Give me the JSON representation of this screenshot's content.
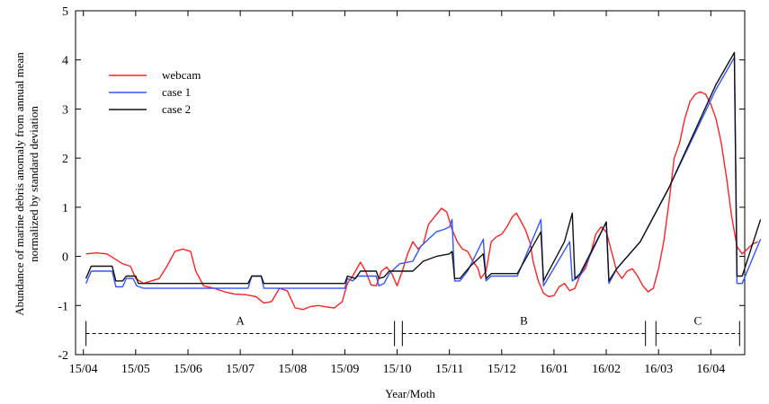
{
  "chart_data": {
    "type": "line",
    "title": "",
    "xlabel": "Year/Moth",
    "ylabel_lines": [
      "Abundance of marine debris anomaly from annual mean",
      "normalized by standard deviation"
    ],
    "x_unit": "month index from 15/04",
    "xlim": [
      0,
      12.35
    ],
    "ylim": [
      -2,
      5
    ],
    "xticks": [
      {
        "x": 0,
        "label": "15/04"
      },
      {
        "x": 1,
        "label": "15/05"
      },
      {
        "x": 2,
        "label": "15/06"
      },
      {
        "x": 3,
        "label": "15/07"
      },
      {
        "x": 4,
        "label": "15/08"
      },
      {
        "x": 5,
        "label": "15/09"
      },
      {
        "x": 6,
        "label": "15/10"
      },
      {
        "x": 7,
        "label": "15/11"
      },
      {
        "x": 8,
        "label": "15/12"
      },
      {
        "x": 9,
        "label": "16/01"
      },
      {
        "x": 10,
        "label": "16/02"
      },
      {
        "x": 11,
        "label": "16/03"
      },
      {
        "x": 12,
        "label": "16/04"
      }
    ],
    "yticks": [
      {
        "y": -2,
        "label": "-2"
      },
      {
        "y": -1,
        "label": "-1"
      },
      {
        "y": 0,
        "label": "0"
      },
      {
        "y": 1,
        "label": "1"
      },
      {
        "y": 2,
        "label": "2"
      },
      {
        "y": 3,
        "label": "3"
      },
      {
        "y": 4,
        "label": "4"
      },
      {
        "y": 5,
        "label": "5"
      }
    ],
    "grid": false,
    "legend_position": "top-left",
    "series": [
      {
        "name": "webcam",
        "color": "#ff2222",
        "points": [
          [
            0.05,
            0.05
          ],
          [
            0.25,
            0.07
          ],
          [
            0.45,
            0.05
          ],
          [
            0.6,
            -0.05
          ],
          [
            0.75,
            -0.15
          ],
          [
            0.9,
            -0.2
          ],
          [
            1.0,
            -0.45
          ],
          [
            1.15,
            -0.55
          ],
          [
            1.3,
            -0.5
          ],
          [
            1.45,
            -0.45
          ],
          [
            1.6,
            -0.2
          ],
          [
            1.75,
            0.1
          ],
          [
            1.9,
            0.15
          ],
          [
            2.05,
            0.1
          ],
          [
            2.15,
            -0.3
          ],
          [
            2.3,
            -0.6
          ],
          [
            2.5,
            -0.65
          ],
          [
            2.7,
            -0.72
          ],
          [
            2.9,
            -0.77
          ],
          [
            3.1,
            -0.78
          ],
          [
            3.3,
            -0.82
          ],
          [
            3.45,
            -0.95
          ],
          [
            3.6,
            -0.92
          ],
          [
            3.75,
            -0.65
          ],
          [
            3.9,
            -0.7
          ],
          [
            4.05,
            -1.05
          ],
          [
            4.2,
            -1.08
          ],
          [
            4.35,
            -1.02
          ],
          [
            4.5,
            -1.0
          ],
          [
            4.65,
            -1.03
          ],
          [
            4.8,
            -1.05
          ],
          [
            4.95,
            -0.92
          ],
          [
            5.05,
            -0.55
          ],
          [
            5.15,
            -0.4
          ],
          [
            5.3,
            -0.12
          ],
          [
            5.4,
            -0.3
          ],
          [
            5.5,
            -0.58
          ],
          [
            5.6,
            -0.6
          ],
          [
            5.7,
            -0.3
          ],
          [
            5.8,
            -0.22
          ],
          [
            5.9,
            -0.35
          ],
          [
            6.0,
            -0.6
          ],
          [
            6.1,
            -0.3
          ],
          [
            6.2,
            0.05
          ],
          [
            6.3,
            0.3
          ],
          [
            6.4,
            0.15
          ],
          [
            6.5,
            0.25
          ],
          [
            6.6,
            0.65
          ],
          [
            6.75,
            0.85
          ],
          [
            6.85,
            0.98
          ],
          [
            6.95,
            0.9
          ],
          [
            7.05,
            0.55
          ],
          [
            7.15,
            0.3
          ],
          [
            7.25,
            0.15
          ],
          [
            7.35,
            0.1
          ],
          [
            7.45,
            -0.1
          ],
          [
            7.55,
            -0.25
          ],
          [
            7.6,
            -0.45
          ],
          [
            7.7,
            -0.3
          ],
          [
            7.8,
            0.3
          ],
          [
            7.9,
            0.4
          ],
          [
            8.0,
            0.45
          ],
          [
            8.1,
            0.6
          ],
          [
            8.2,
            0.8
          ],
          [
            8.28,
            0.88
          ],
          [
            8.35,
            0.75
          ],
          [
            8.45,
            0.55
          ],
          [
            8.55,
            0.25
          ],
          [
            8.6,
            -0.1
          ],
          [
            8.7,
            -0.5
          ],
          [
            8.8,
            -0.75
          ],
          [
            8.9,
            -0.82
          ],
          [
            9.0,
            -0.8
          ],
          [
            9.1,
            -0.62
          ],
          [
            9.2,
            -0.55
          ],
          [
            9.3,
            -0.7
          ],
          [
            9.4,
            -0.65
          ],
          [
            9.5,
            -0.38
          ],
          [
            9.6,
            -0.25
          ],
          [
            9.7,
            0.05
          ],
          [
            9.8,
            0.45
          ],
          [
            9.9,
            0.6
          ],
          [
            10.0,
            0.5
          ],
          [
            10.1,
            0.1
          ],
          [
            10.2,
            -0.3
          ],
          [
            10.3,
            -0.45
          ],
          [
            10.4,
            -0.3
          ],
          [
            10.5,
            -0.25
          ],
          [
            10.6,
            -0.4
          ],
          [
            10.7,
            -0.6
          ],
          [
            10.8,
            -0.72
          ],
          [
            10.9,
            -0.65
          ],
          [
            11.0,
            -0.25
          ],
          [
            11.1,
            0.3
          ],
          [
            11.2,
            1.1
          ],
          [
            11.3,
            2.0
          ],
          [
            11.4,
            2.3
          ],
          [
            11.5,
            2.8
          ],
          [
            11.6,
            3.15
          ],
          [
            11.7,
            3.3
          ],
          [
            11.8,
            3.35
          ],
          [
            11.9,
            3.3
          ],
          [
            12.0,
            3.1
          ],
          [
            12.1,
            2.8
          ],
          [
            12.2,
            2.3
          ],
          [
            12.3,
            1.6
          ],
          [
            12.4,
            0.8
          ],
          [
            12.5,
            0.2
          ],
          [
            12.6,
            0.05
          ],
          [
            12.7,
            0.15
          ],
          [
            12.8,
            0.25
          ],
          [
            12.9,
            0.3
          ]
        ]
      },
      {
        "name": "case 1",
        "color": "#3355ff",
        "points": [
          [
            0.05,
            -0.55
          ],
          [
            0.15,
            -0.3
          ],
          [
            0.55,
            -0.3
          ],
          [
            0.62,
            -0.62
          ],
          [
            0.75,
            -0.62
          ],
          [
            0.82,
            -0.45
          ],
          [
            0.95,
            -0.45
          ],
          [
            1.02,
            -0.6
          ],
          [
            1.15,
            -0.65
          ],
          [
            3.15,
            -0.65
          ],
          [
            3.22,
            -0.4
          ],
          [
            3.4,
            -0.4
          ],
          [
            3.45,
            -0.65
          ],
          [
            5.0,
            -0.65
          ],
          [
            5.05,
            -0.45
          ],
          [
            5.15,
            -0.5
          ],
          [
            5.25,
            -0.4
          ],
          [
            5.6,
            -0.4
          ],
          [
            5.65,
            -0.6
          ],
          [
            5.75,
            -0.55
          ],
          [
            5.85,
            -0.35
          ],
          [
            6.05,
            -0.15
          ],
          [
            6.3,
            -0.1
          ],
          [
            6.45,
            0.2
          ],
          [
            6.6,
            0.35
          ],
          [
            6.75,
            0.5
          ],
          [
            6.9,
            0.55
          ],
          [
            7.0,
            0.6
          ],
          [
            7.05,
            0.75
          ],
          [
            7.1,
            -0.5
          ],
          [
            7.2,
            -0.5
          ],
          [
            7.35,
            -0.3
          ],
          [
            7.65,
            0.35
          ],
          [
            7.7,
            -0.5
          ],
          [
            7.8,
            -0.4
          ],
          [
            8.3,
            -0.4
          ],
          [
            8.75,
            0.75
          ],
          [
            8.8,
            -0.6
          ],
          [
            9.3,
            0.3
          ],
          [
            9.35,
            -0.5
          ],
          [
            9.5,
            -0.4
          ],
          [
            10.0,
            0.7
          ],
          [
            10.05,
            -0.55
          ],
          [
            10.2,
            -0.25
          ],
          [
            10.65,
            0.3
          ],
          [
            11.2,
            1.4
          ],
          [
            12.1,
            3.4
          ],
          [
            12.45,
            4.05
          ],
          [
            12.5,
            -0.55
          ],
          [
            12.6,
            -0.55
          ],
          [
            12.95,
            0.35
          ]
        ]
      },
      {
        "name": "case 2",
        "color": "#111111",
        "points": [
          [
            0.05,
            -0.45
          ],
          [
            0.15,
            -0.2
          ],
          [
            0.55,
            -0.2
          ],
          [
            0.62,
            -0.5
          ],
          [
            0.75,
            -0.5
          ],
          [
            0.82,
            -0.4
          ],
          [
            1.0,
            -0.4
          ],
          [
            1.05,
            -0.55
          ],
          [
            3.15,
            -0.55
          ],
          [
            3.22,
            -0.4
          ],
          [
            3.4,
            -0.4
          ],
          [
            3.45,
            -0.55
          ],
          [
            5.0,
            -0.55
          ],
          [
            5.05,
            -0.4
          ],
          [
            5.2,
            -0.45
          ],
          [
            5.3,
            -0.3
          ],
          [
            5.6,
            -0.3
          ],
          [
            5.65,
            -0.45
          ],
          [
            5.75,
            -0.42
          ],
          [
            5.85,
            -0.3
          ],
          [
            6.3,
            -0.3
          ],
          [
            6.5,
            -0.1
          ],
          [
            6.75,
            0.0
          ],
          [
            7.0,
            0.05
          ],
          [
            7.05,
            0.1
          ],
          [
            7.1,
            -0.45
          ],
          [
            7.2,
            -0.45
          ],
          [
            7.4,
            -0.2
          ],
          [
            7.65,
            0.05
          ],
          [
            7.7,
            -0.45
          ],
          [
            7.8,
            -0.35
          ],
          [
            8.3,
            -0.35
          ],
          [
            8.75,
            0.5
          ],
          [
            8.8,
            -0.5
          ],
          [
            9.2,
            0.3
          ],
          [
            9.35,
            0.88
          ],
          [
            9.4,
            -0.45
          ],
          [
            9.5,
            -0.35
          ],
          [
            10.0,
            0.7
          ],
          [
            10.05,
            -0.5
          ],
          [
            10.2,
            -0.25
          ],
          [
            10.65,
            0.3
          ],
          [
            11.2,
            1.4
          ],
          [
            12.1,
            3.5
          ],
          [
            12.45,
            4.15
          ],
          [
            12.5,
            -0.4
          ],
          [
            12.6,
            -0.4
          ],
          [
            12.95,
            0.75
          ]
        ]
      }
    ],
    "periods": [
      {
        "label": "A",
        "start": 0.05,
        "end": 5.95,
        "y": -1.57
      },
      {
        "label": "B",
        "start": 6.1,
        "end": 10.75,
        "y": -1.57
      },
      {
        "label": "C",
        "start": 10.95,
        "end": 12.55,
        "y": -1.57
      }
    ]
  }
}
